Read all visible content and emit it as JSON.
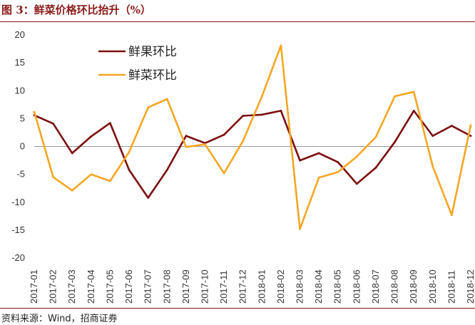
{
  "header": {
    "title": "图 3：鲜菜价格环比抬升（%）"
  },
  "footer": {
    "source": "资料来源：Wind，招商证券"
  },
  "chart_data": {
    "type": "line",
    "categories": [
      "2017-01",
      "2017-02",
      "2017-03",
      "2017-04",
      "2017-05",
      "2017-06",
      "2017-07",
      "2017-08",
      "2017-09",
      "2017-10",
      "2017-11",
      "2017-12",
      "2018-01",
      "2018-02",
      "2018-03",
      "2018-04",
      "2018-05",
      "2018-06",
      "2018-07",
      "2018-08",
      "2018-09",
      "2018-10",
      "2018-11",
      "2018-12"
    ],
    "ylim": [
      -20,
      20
    ],
    "yticks": [
      20,
      15,
      10,
      5,
      0,
      -5,
      -10,
      -15,
      -20
    ],
    "series": [
      {
        "name": "鲜果环比",
        "color": "#7b0f0f",
        "values": [
          5.6,
          4.1,
          -1.2,
          1.8,
          4.2,
          -4.2,
          -9.2,
          -4.2,
          1.9,
          0.6,
          2.1,
          5.5,
          5.7,
          6.4,
          -2.5,
          -1.2,
          -2.8,
          -6.7,
          -3.8,
          0.8,
          6.4,
          1.9,
          3.7,
          1.9
        ]
      },
      {
        "name": "鲜菜环比",
        "color": "#f5a623",
        "values": [
          6.2,
          -5.5,
          -7.9,
          -5.0,
          -6.2,
          -1.0,
          7.0,
          8.5,
          -0.1,
          0.4,
          -4.8,
          1.0,
          9.0,
          18.1,
          -14.8,
          -5.6,
          -4.6,
          -1.8,
          1.7,
          9.0,
          9.8,
          -3.6,
          -12.3,
          3.8
        ]
      }
    ],
    "legend_position": "top-left",
    "grid": false
  }
}
